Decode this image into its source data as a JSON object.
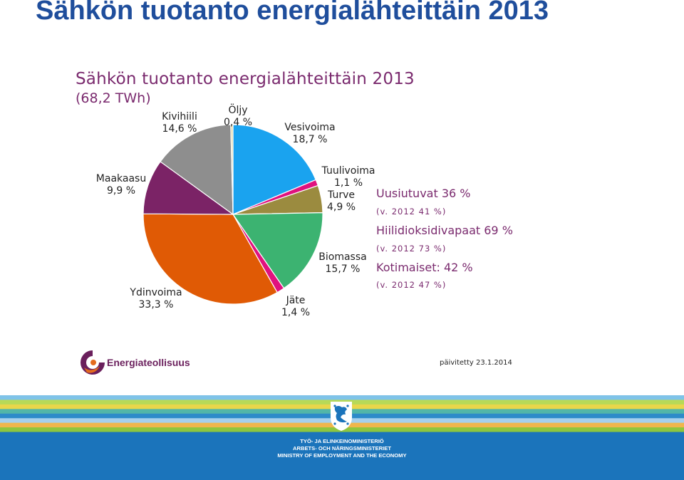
{
  "slide": {
    "title": "Sähkön tuotanto energialähteittäin 2013"
  },
  "chart_data": {
    "type": "pie",
    "title": "Sähkön tuotanto energialähteittäin 2013",
    "subtitle": "(68,2 TWh)",
    "unit": "%",
    "slices": [
      {
        "name": "Vesivoima",
        "value": 18.7,
        "label": "18,7 %",
        "color": "#1aa3ef"
      },
      {
        "name": "Tuulivoima",
        "value": 1.1,
        "label": "1,1 %",
        "color": "#e0127e"
      },
      {
        "name": "Turve",
        "value": 4.9,
        "label": "4,9 %",
        "color": "#9b8b3f"
      },
      {
        "name": "Biomassa",
        "value": 15.7,
        "label": "15,7 %",
        "color": "#3cb371"
      },
      {
        "name": "Jäte",
        "value": 1.4,
        "label": "1,4 %",
        "color": "#e0127e"
      },
      {
        "name": "Ydinvoima",
        "value": 33.3,
        "label": "33,3 %",
        "color": "#e05a05"
      },
      {
        "name": "Maakaasu",
        "value": 9.9,
        "label": "9,9 %",
        "color": "#7b2366"
      },
      {
        "name": "Kivihiili",
        "value": 14.6,
        "label": "14,6 %",
        "color": "#8e8e8e"
      },
      {
        "name": "Öljy",
        "value": 0.4,
        "label": "0,4 %",
        "color": "#e8d9a8"
      }
    ]
  },
  "summary": [
    {
      "main": "Uusiutuvat 36 %",
      "sub": "(v. 2012 41 %)"
    },
    {
      "main": "Hiilidioksidivapaat 69 %",
      "sub": "(v. 2012 73 %)"
    },
    {
      "main": "Kotimaiset: 42 %",
      "sub": "(v. 2012 47 %)"
    }
  ],
  "footer": {
    "logo_text": "Energiateollisuus",
    "updated": "päivitetty 23.1.2014",
    "ministry_lines": [
      "TYÖ- JA ELINKEINOMINISTERIÖ",
      "ARBETS- OCH NÄRINGSMINISTERIET",
      "MINISTRY OF EMPLOYMENT AND THE ECONOMY"
    ],
    "stripe_colors": [
      "#7fc3e8",
      "#b7d957",
      "#e8d64a",
      "#52b6a8",
      "#2d8bc9",
      "#a6d0ec",
      "#f0b64c",
      "#8dc63f",
      "#1b74bb"
    ]
  }
}
